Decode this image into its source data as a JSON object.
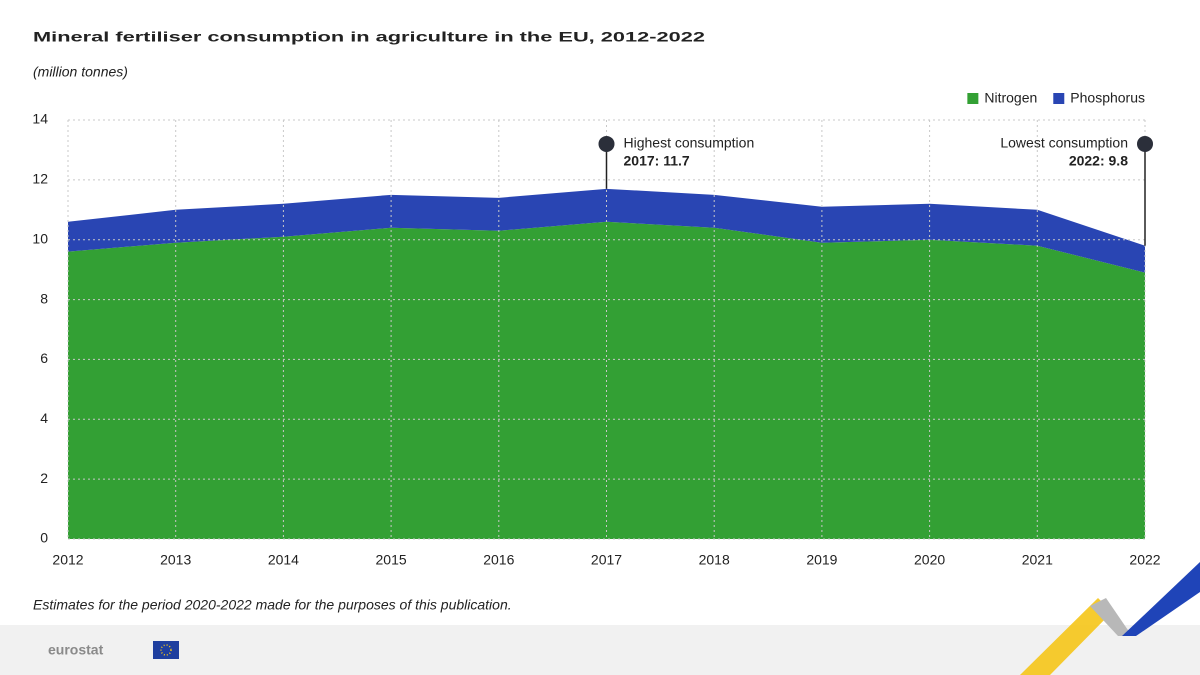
{
  "chart_data": {
    "type": "stacked-area",
    "title": "Mineral fertiliser consumption in agriculture in the EU, 2012-2022",
    "subtitle": "(million tonnes)",
    "categories": [
      "2012",
      "2013",
      "2014",
      "2015",
      "2016",
      "2017",
      "2018",
      "2019",
      "2020",
      "2021",
      "2022"
    ],
    "series": [
      {
        "name": "Nitrogen",
        "color": "#33a034",
        "values": [
          9.6,
          9.9,
          10.1,
          10.4,
          10.3,
          10.6,
          10.4,
          9.9,
          10.0,
          9.8,
          8.9
        ]
      },
      {
        "name": "Phosphorus",
        "color": "#2945b3",
        "values": [
          1.0,
          1.1,
          1.1,
          1.1,
          1.1,
          1.1,
          1.1,
          1.2,
          1.2,
          1.2,
          0.9
        ]
      }
    ],
    "ylim": [
      0,
      14
    ],
    "yticks": [
      0,
      2,
      4,
      6,
      8,
      10,
      12,
      14
    ],
    "grid": true,
    "legend": "top-right",
    "annotations": [
      {
        "title": "Highest consumption",
        "label": "2017: 11.7",
        "x": "2017",
        "value": 11.7
      },
      {
        "title": "Lowest consumption",
        "label": "2022: 9.8",
        "x": "2022",
        "value": 9.8
      }
    ],
    "footnote": "Estimates for the period 2020-2022 made for the purposes of this publication.",
    "source": "eurostat"
  }
}
